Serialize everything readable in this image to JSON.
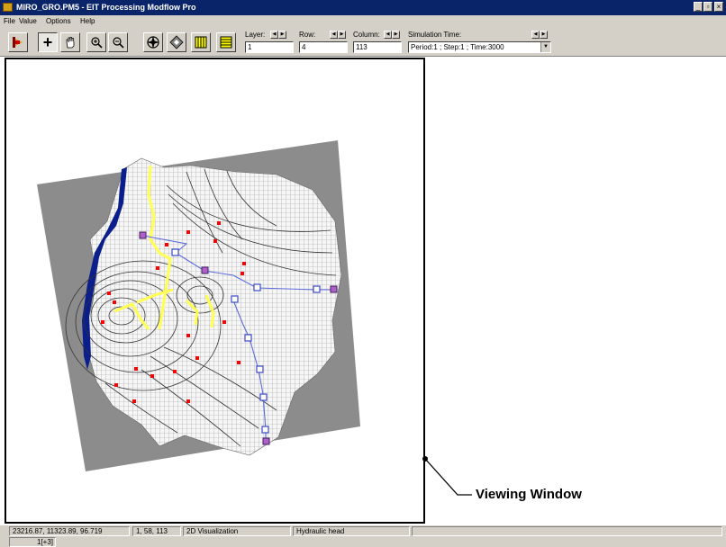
{
  "window": {
    "title": "MIRO_GRO.PM5 - EIT Processing Modflow Pro",
    "controls": [
      "_",
      "▫",
      "×"
    ]
  },
  "menu": [
    "File",
    "Value",
    "Options",
    "Help"
  ],
  "toolbar": {
    "layer_label": "Layer:",
    "layer_value": "1",
    "row_label": "Row:",
    "row_value": "4",
    "column_label": "Column:",
    "column_value": "113",
    "sim_label": "Simulation Time:",
    "sim_value": "Period:1 ; Step:1 ; Time:3000"
  },
  "status": {
    "coordinates": "23216.87, 11323.89, 96.719",
    "cell": "1, 58, 113",
    "mode": "2D Visualization",
    "variable": "Hydraulic head",
    "scale": "1[+3]"
  },
  "annotation": {
    "label": "Viewing Window"
  },
  "colors": {
    "titlebar": "#0a246a",
    "chrome": "#d4d0c8",
    "model_background": "#8c8c8c",
    "grid_line": "#9a9a9a",
    "river": "#ffff55",
    "boundary": "#0a1e8c",
    "wells": "#ff0000",
    "pathlines": "#5a6adc"
  }
}
